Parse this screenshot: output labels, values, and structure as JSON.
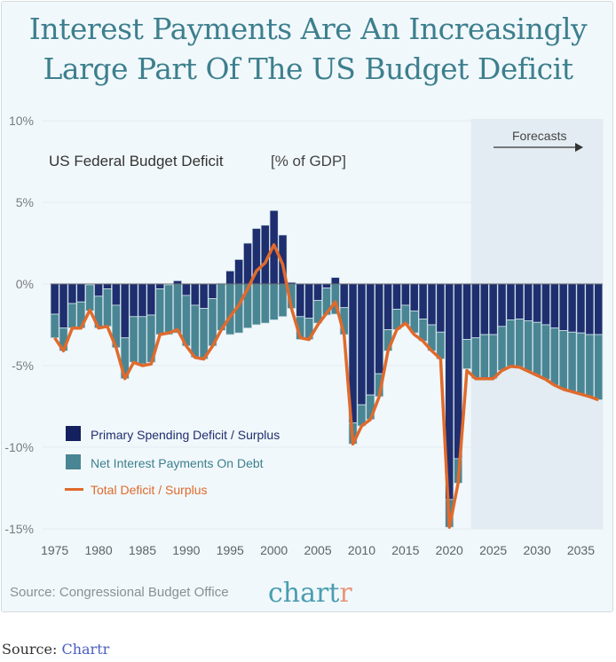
{
  "header": {
    "title_line1": "Interest Payments Are An Increasingly",
    "title_line2": "Large Part Of The US Budget Deficit"
  },
  "footer": {
    "source_text": "Source: Congressional Budget Office",
    "brand_main": "chart",
    "brand_accent": "r",
    "caption_prefix": "Source: ",
    "caption_link": "Chartr"
  },
  "colors": {
    "primary_deficit": "#1f2e6e",
    "net_interest": "#4a8593",
    "total_line": "#e06a2c",
    "forecast_band": "#e3ecf2",
    "title": "#3d7f8e",
    "brand_main": "#4a9db0",
    "brand_accent": "#e8967a"
  },
  "chart_data": {
    "type": "bar",
    "stacked": true,
    "title": "US Federal Budget Deficit",
    "unit_label": "[% of GDP]",
    "xlabel": "",
    "ylabel": "% of GDP",
    "ylim": [
      -15,
      10
    ],
    "yticks": [
      10,
      5,
      0,
      -5,
      -10,
      -15
    ],
    "ytick_labels": [
      "10%",
      "5%",
      "0%",
      "-5%",
      "-10%",
      "-15%"
    ],
    "xticks": [
      1975,
      1980,
      1985,
      1990,
      1995,
      2000,
      2005,
      2010,
      2015,
      2020,
      2025,
      2030,
      2035
    ],
    "xtick_labels": [
      "1975",
      "1980",
      "1985",
      "1990",
      "1995",
      "2000",
      "2005",
      "2010",
      "2015",
      "2020",
      "2025",
      "2030",
      "2035"
    ],
    "grid": true,
    "legend_position": "bottom-left",
    "annotation": {
      "text": "Forecasts",
      "start_year": 2023,
      "end_year": 2037
    },
    "x": [
      1975,
      1976,
      1977,
      1978,
      1979,
      1980,
      1981,
      1982,
      1983,
      1984,
      1985,
      1986,
      1987,
      1988,
      1989,
      1990,
      1991,
      1992,
      1993,
      1994,
      1995,
      1996,
      1997,
      1998,
      1999,
      2000,
      2001,
      2002,
      2003,
      2004,
      2005,
      2006,
      2007,
      2008,
      2009,
      2010,
      2011,
      2012,
      2013,
      2014,
      2015,
      2016,
      2017,
      2018,
      2019,
      2020,
      2021,
      2022,
      2023,
      2024,
      2025,
      2026,
      2027,
      2028,
      2029,
      2030,
      2031,
      2032,
      2033,
      2034,
      2035,
      2036,
      2037
    ],
    "series": [
      {
        "name": "Primary Spending Deficit / Surplus",
        "kind": "bar",
        "values": [
          -1.85,
          -2.7,
          -1.2,
          -1.1,
          -0.05,
          -0.75,
          -0.3,
          -1.3,
          -3.3,
          -2.0,
          -2.0,
          -1.9,
          -0.3,
          -0.05,
          0.2,
          -0.7,
          -1.3,
          -1.5,
          -0.9,
          0.05,
          0.8,
          1.5,
          2.5,
          3.4,
          3.6,
          4.5,
          3.0,
          0.1,
          -2.0,
          -2.1,
          -1.0,
          -0.25,
          0.4,
          -1.45,
          -8.5,
          -7.4,
          -6.8,
          -5.5,
          -2.8,
          -1.55,
          -1.3,
          -1.65,
          -2.15,
          -2.5,
          -2.95,
          -13.2,
          -10.7,
          -3.4,
          -3.3,
          -3.1,
          -3.1,
          -2.6,
          -2.2,
          -2.15,
          -2.25,
          -2.35,
          -2.5,
          -2.7,
          -2.85,
          -2.95,
          -3.0,
          -3.1,
          -3.1
        ]
      },
      {
        "name": "Net Interest Payments On Debt",
        "kind": "bar",
        "values": [
          -1.45,
          -1.4,
          -1.5,
          -1.6,
          -1.6,
          -1.95,
          -2.3,
          -2.6,
          -2.5,
          -2.8,
          -2.9,
          -2.9,
          -2.8,
          -3.05,
          -3.0,
          -3.1,
          -3.2,
          -3.1,
          -2.9,
          -2.85,
          -3.1,
          -3.0,
          -2.7,
          -2.5,
          -2.4,
          -2.2,
          -2.0,
          -1.5,
          -1.4,
          -1.3,
          -1.4,
          -1.65,
          -1.85,
          -1.65,
          -1.3,
          -1.3,
          -1.5,
          -1.4,
          -1.3,
          -1.25,
          -1.2,
          -1.35,
          -1.35,
          -1.6,
          -1.65,
          -1.7,
          -1.5,
          -1.8,
          -2.5,
          -2.7,
          -2.7,
          -2.7,
          -2.85,
          -2.95,
          -3.1,
          -3.25,
          -3.35,
          -3.5,
          -3.6,
          -3.65,
          -3.75,
          -3.8,
          -4.0
        ]
      },
      {
        "name": "Total Deficit / Surplus",
        "kind": "line",
        "values": [
          -3.3,
          -4.1,
          -2.7,
          -2.7,
          -1.6,
          -2.7,
          -2.6,
          -3.9,
          -5.8,
          -4.8,
          -5.0,
          -4.9,
          -3.1,
          -3.0,
          -2.8,
          -3.8,
          -4.5,
          -4.6,
          -3.8,
          -2.8,
          -2.0,
          -1.3,
          -0.3,
          0.8,
          1.3,
          2.4,
          1.2,
          -1.5,
          -3.3,
          -3.4,
          -2.5,
          -1.8,
          -1.1,
          -3.1,
          -9.8,
          -8.7,
          -8.3,
          -6.9,
          -4.1,
          -2.8,
          -2.4,
          -3.1,
          -3.5,
          -4.1,
          -4.6,
          -14.9,
          -12.2,
          -5.3,
          -5.8,
          -5.8,
          -5.8,
          -5.3,
          -5.05,
          -5.1,
          -5.35,
          -5.6,
          -5.85,
          -6.2,
          -6.45,
          -6.6,
          -6.75,
          -6.9,
          -7.1
        ]
      }
    ]
  }
}
